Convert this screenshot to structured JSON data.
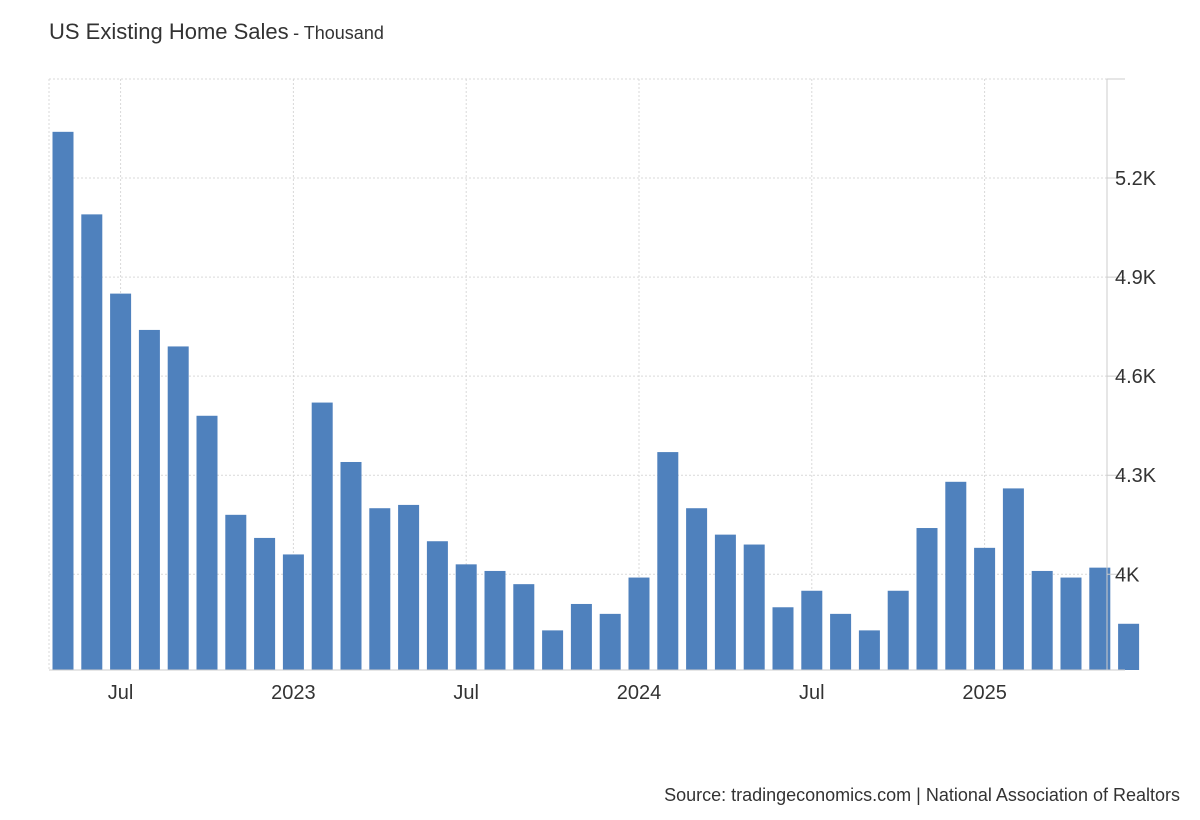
{
  "chart_data": {
    "type": "bar",
    "title": "US Existing Home Sales",
    "subtitle": "- Thousand",
    "x_tick_labels": [
      "Jul",
      "2023",
      "Jul",
      "2024",
      "Jul",
      "2025"
    ],
    "y_tick_labels": [
      "4K",
      "4.3K",
      "4.6K",
      "4.9K",
      "5.2K"
    ],
    "y_ticks": [
      4000,
      4300,
      4600,
      4900,
      5200
    ],
    "ylim": [
      3710,
      5500
    ],
    "grid": true,
    "categories": [
      "2022-05",
      "2022-06",
      "2022-07",
      "2022-08",
      "2022-09",
      "2022-10",
      "2022-11",
      "2022-12",
      "2023-01",
      "2023-02",
      "2023-03",
      "2023-04",
      "2023-05",
      "2023-06",
      "2023-07",
      "2023-08",
      "2023-09",
      "2023-10",
      "2023-11",
      "2023-12",
      "2024-01",
      "2024-02",
      "2024-03",
      "2024-04",
      "2024-05",
      "2024-06",
      "2024-07",
      "2024-08",
      "2024-09",
      "2024-10",
      "2024-11",
      "2024-12",
      "2025-01",
      "2025-02",
      "2025-03",
      "2025-04",
      "2025-05",
      "2025-06"
    ],
    "values": [
      5340,
      5090,
      4850,
      4740,
      4690,
      4480,
      4180,
      4110,
      4060,
      4520,
      4340,
      4200,
      4210,
      4100,
      4030,
      4010,
      3970,
      3830,
      3910,
      3880,
      3990,
      4370,
      4200,
      4120,
      4090,
      3900,
      3950,
      3880,
      3830,
      3950,
      4140,
      4280,
      4080,
      4260,
      4010,
      3990,
      4020,
      3850
    ],
    "color": "#4f81bd",
    "source": "Source: tradingeconomics.com | National Association of Realtors"
  }
}
